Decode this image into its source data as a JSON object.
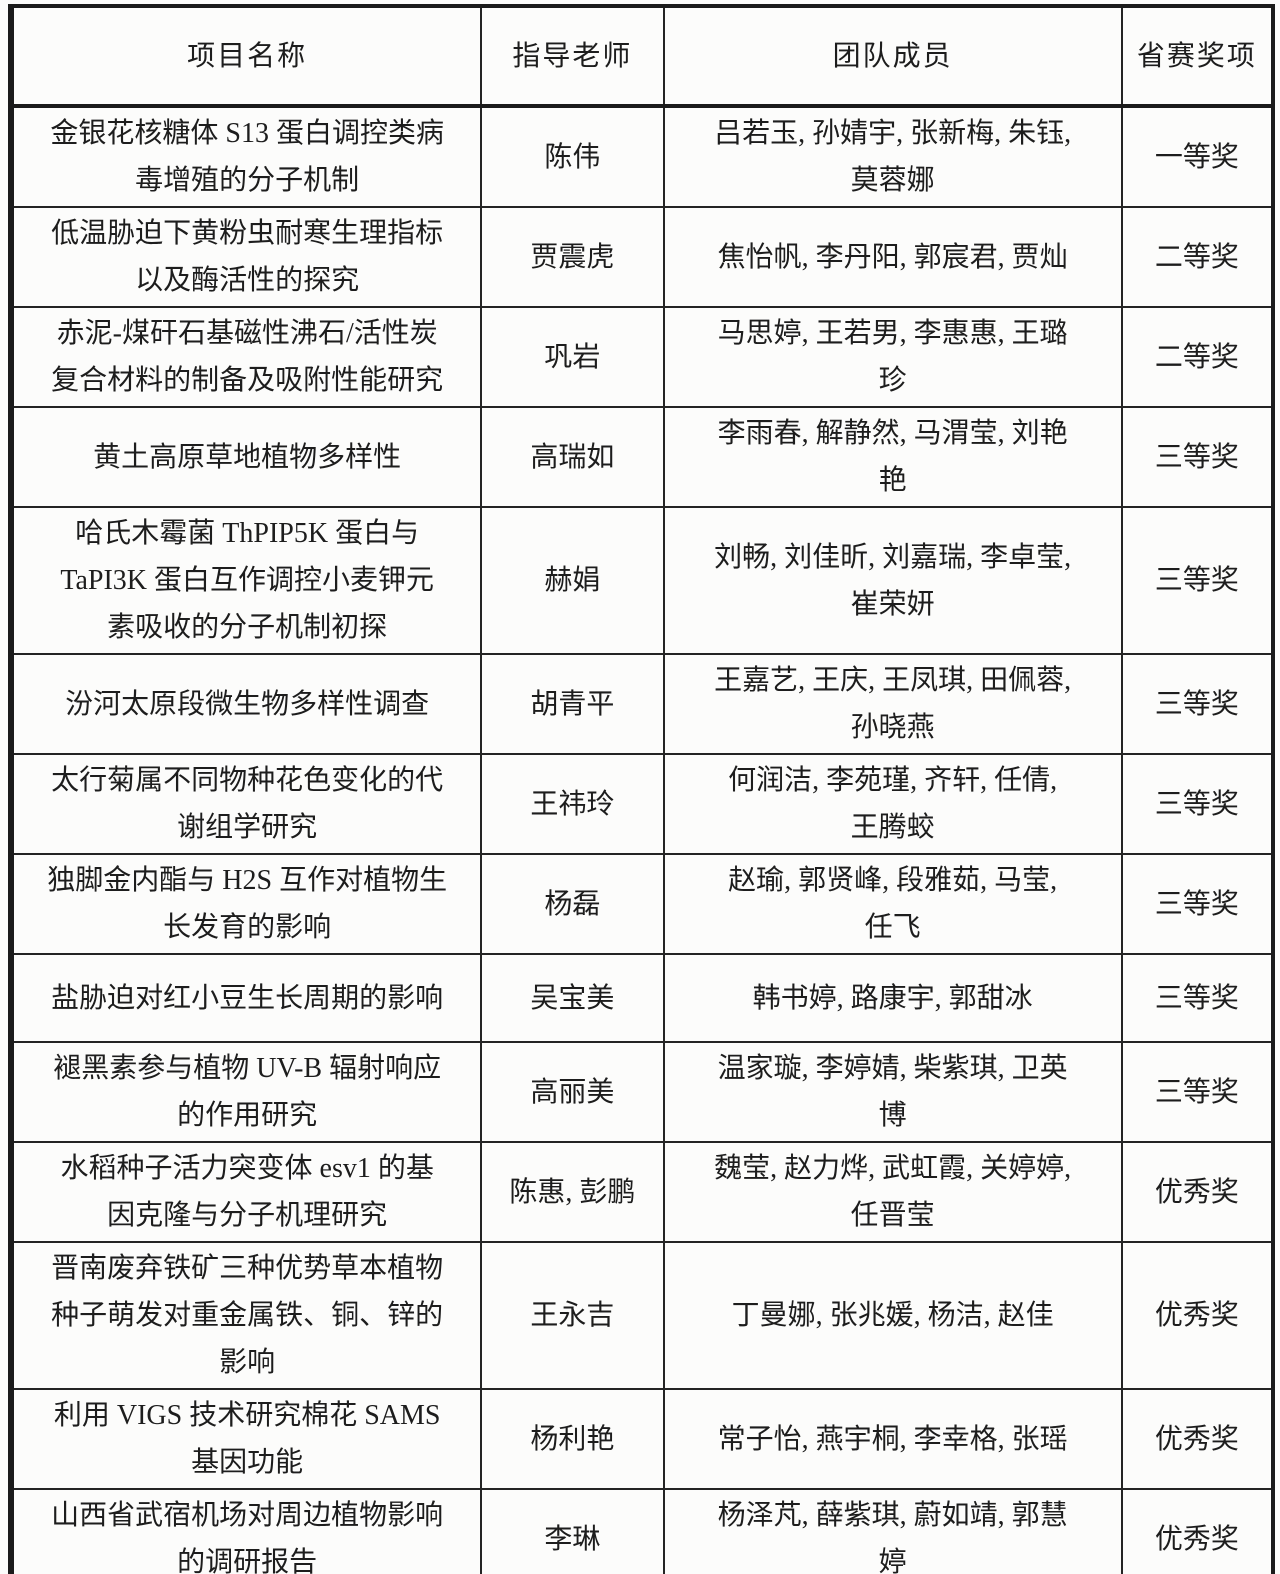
{
  "table": {
    "headers": {
      "project": "项目名称",
      "teacher": "指导老师",
      "members": "团队成员",
      "award": "省赛奖项"
    },
    "rows": [
      {
        "project": "金银花核糖体 S13 蛋白调控类病\n毒增殖的分子机制",
        "teacher": "陈伟",
        "members": "吕若玉, 孙婧宇, 张新梅, 朱钰,\n莫蓉娜",
        "award": "一等奖"
      },
      {
        "project": "低温胁迫下黄粉虫耐寒生理指标\n以及酶活性的探究",
        "teacher": "贾震虎",
        "members": "焦怡帆, 李丹阳, 郭宸君, 贾灿",
        "award": "二等奖"
      },
      {
        "project": "赤泥-煤矸石基磁性沸石/活性炭\n复合材料的制备及吸附性能研究",
        "teacher": "巩岩",
        "members": "马思婷, 王若男, 李惠惠, 王璐\n珍",
        "award": "二等奖"
      },
      {
        "project": "黄土高原草地植物多样性",
        "teacher": "高瑞如",
        "members": "李雨春, 解静然, 马渭莹, 刘艳\n艳",
        "award": "三等奖"
      },
      {
        "project": "哈氏木霉菌 ThPIP5K 蛋白与\nTaPI3K 蛋白互作调控小麦钾元\n素吸收的分子机制初探",
        "teacher": "赫娟",
        "members": "刘畅, 刘佳昕, 刘嘉瑞, 李卓莹,\n崔荣妍",
        "award": "三等奖"
      },
      {
        "project": "汾河太原段微生物多样性调查",
        "teacher": "胡青平",
        "members": "王嘉艺, 王庆, 王凤琪, 田佩蓉,\n孙晓燕",
        "award": "三等奖"
      },
      {
        "project": "太行菊属不同物种花色变化的代\n谢组学研究",
        "teacher": "王祎玲",
        "members": "何润洁, 李苑瑾, 齐轩, 任倩,\n王腾蛟",
        "award": "三等奖"
      },
      {
        "project": "独脚金内酯与 H2S 互作对植物生\n长发育的影响",
        "teacher": "杨磊",
        "members": "赵瑜, 郭贤峰, 段雅茹, 马莹,\n任飞",
        "award": "三等奖"
      },
      {
        "project": "盐胁迫对红小豆生长周期的影响",
        "teacher": "吴宝美",
        "members": "韩书婷, 路康宇, 郭甜冰",
        "award": "三等奖"
      },
      {
        "project": "褪黑素参与植物 UV-B 辐射响应\n的作用研究",
        "teacher": "高丽美",
        "members": "温家璇, 李婷婧, 柴紫琪, 卫英\n博",
        "award": "三等奖"
      },
      {
        "project": "水稻种子活力突变体 esv1 的基\n因克隆与分子机理研究",
        "teacher": "陈惠, 彭鹏",
        "members": "魏莹, 赵力烨, 武虹霞, 关婷婷,\n任晋莹",
        "award": "优秀奖"
      },
      {
        "project": "晋南废弃铁矿三种优势草本植物\n种子萌发对重金属铁、铜、锌的\n影响",
        "teacher": "王永吉",
        "members": "丁曼娜, 张兆媛, 杨洁, 赵佳",
        "award": "优秀奖"
      },
      {
        "project": "利用 VIGS 技术研究棉花 SAMS\n基因功能",
        "teacher": "杨利艳",
        "members": "常子怡, 燕宇桐, 李幸格, 张瑶",
        "award": "优秀奖"
      },
      {
        "project": "山西省武宿机场对周边植物影响\n的调研报告",
        "teacher": "李琳",
        "members": "杨泽芃, 薛紫琪, 蔚如靖, 郭慧\n婷",
        "award": "优秀奖"
      }
    ]
  }
}
